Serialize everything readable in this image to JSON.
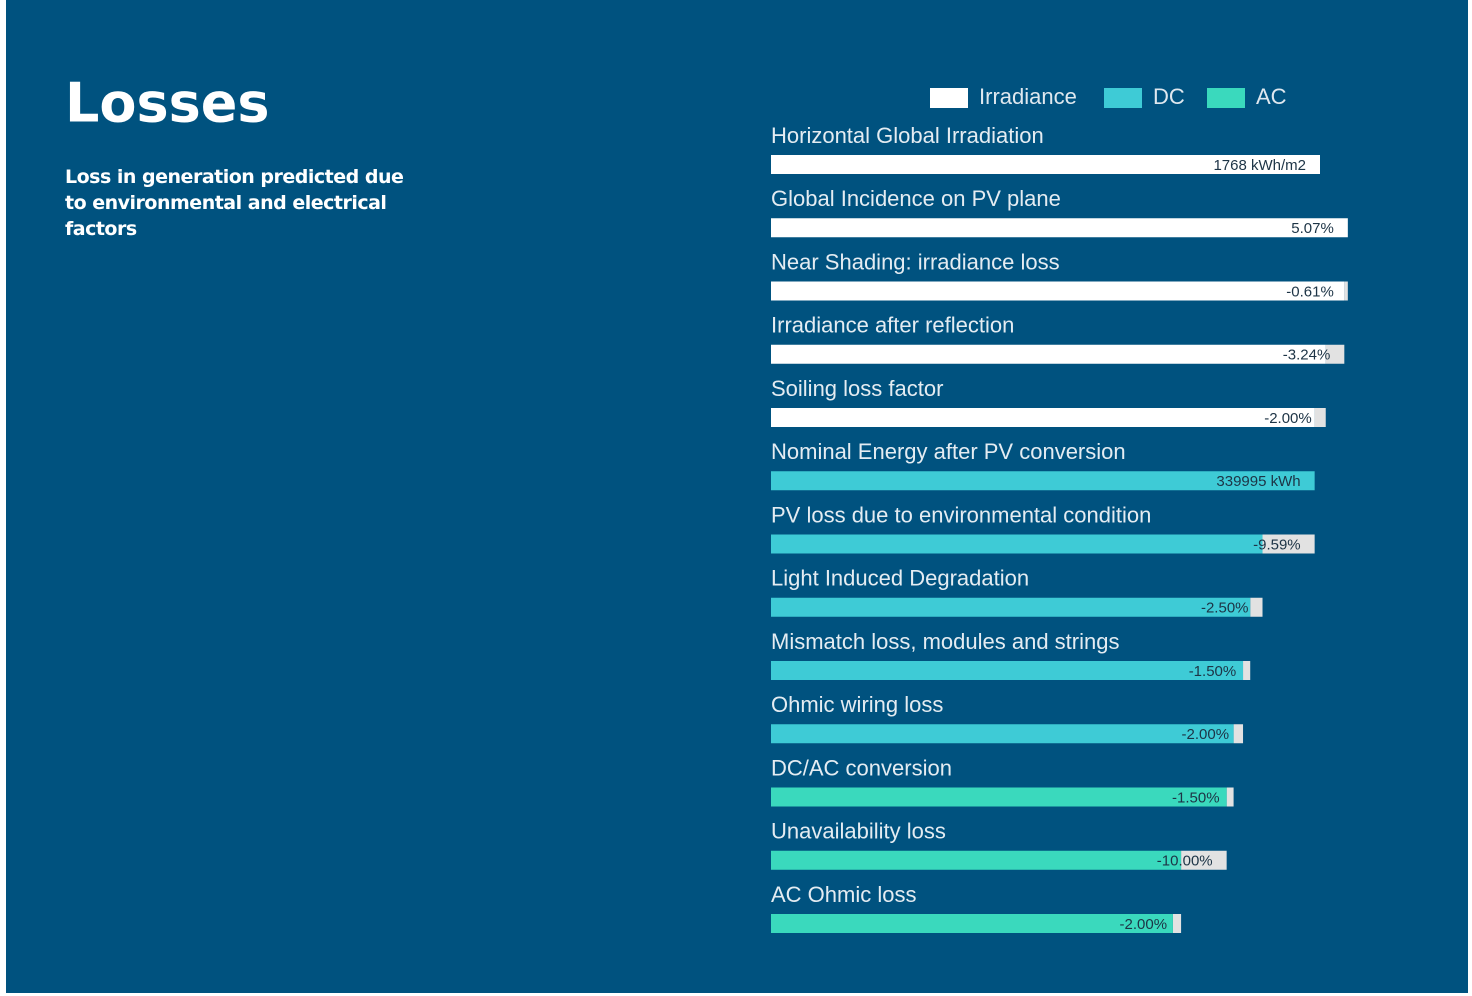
{
  "chart_data": {
    "type": "waterfall",
    "title": "Losses",
    "subtitle": "Loss in generation predicted due to environmental and electrical factors",
    "legend": [
      {
        "name": "Irradiance",
        "color": "#ffffff"
      },
      {
        "name": "DC",
        "color": "#3ecbd6"
      },
      {
        "name": "AC",
        "color": "#3ad9bd"
      }
    ],
    "categories": [
      "Horizontal Global Irradiation",
      "Global Incidence on PV plane",
      "Near Shading: irradiance loss",
      "Irradiance after reflection",
      "Soiling loss factor",
      "Nominal Energy after PV conversion",
      "PV loss due to environmental condition",
      "Light Induced Degradation",
      "Mismatch loss, modules and strings",
      "Ohmic wiring loss",
      "DC/AC conversion",
      "Unavailability loss",
      "AC Ohmic loss"
    ],
    "values": [
      1768,
      5.07,
      -0.61,
      -3.24,
      -2.0,
      339995,
      -9.59,
      -2.5,
      -1.5,
      -2.0,
      -1.5,
      -10.0,
      -2.0
    ],
    "value_labels": [
      "1768  kWh/m2",
      "5.07%",
      "-0.61%",
      "-3.24%",
      "-2.00%",
      "339995  kWh",
      "-9.59%",
      "-2.50%",
      "-1.50%",
      "-2.00%",
      "-1.50%",
      "-10.00%",
      "-2.00%"
    ],
    "measure": [
      "absolute",
      "relative",
      "relative",
      "relative",
      "relative",
      "absolute",
      "relative",
      "relative",
      "relative",
      "relative",
      "relative",
      "relative",
      "relative"
    ],
    "colors": [
      "#ffffff",
      "#ffffff",
      "#ffffff",
      "#ffffff",
      "#ffffff",
      "#3ecbd6",
      "#3ecbd6",
      "#3ecbd6",
      "#3ecbd6",
      "#3ecbd6",
      "#3ad9bd",
      "#3ad9bd",
      "#3ad9bd"
    ],
    "loss_color": "#e2e2e2"
  }
}
